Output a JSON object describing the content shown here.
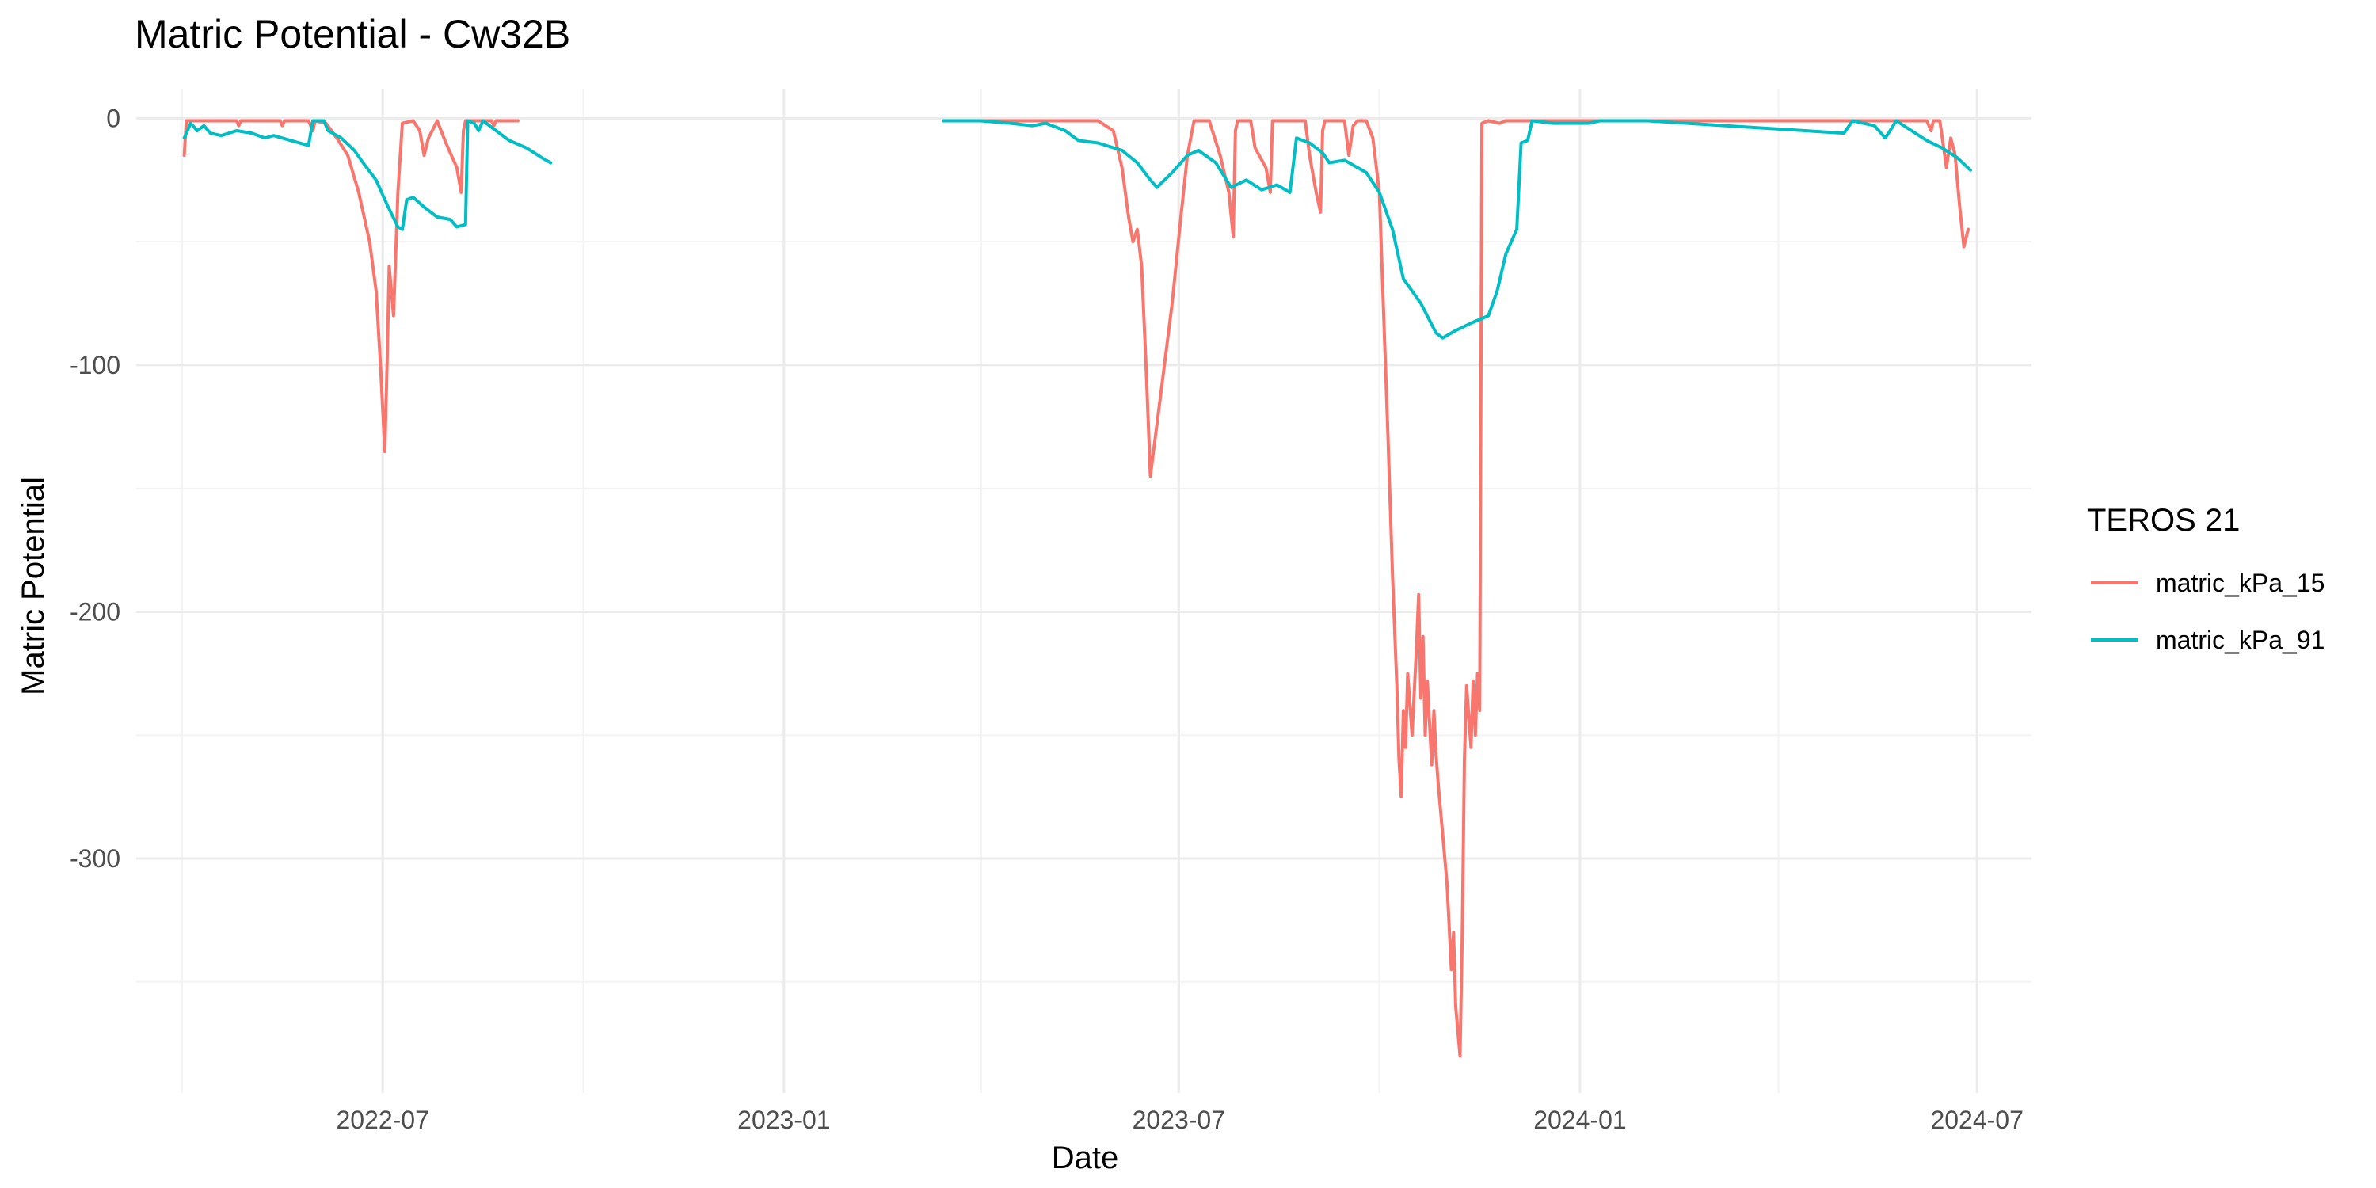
{
  "chart_data": {
    "type": "line",
    "title": "Matric Potential - Cw32B",
    "xlabel": "Date",
    "ylabel": "Matric Potential",
    "xlim": [
      "2022-03-10",
      "2024-07-26"
    ],
    "ylim": [
      -395,
      12
    ],
    "x_ticks": [
      "2022-07-01",
      "2023-01-01",
      "2023-07-01",
      "2024-01-01",
      "2024-07-01"
    ],
    "x_tick_labels": [
      "2022-07",
      "2023-01",
      "2023-07",
      "2024-01",
      "2024-07"
    ],
    "y_ticks": [
      0,
      -100,
      -200,
      -300
    ],
    "y_tick_labels": [
      "0",
      "-100",
      "-200",
      "-300"
    ],
    "grid": true,
    "legend": {
      "title": "TEROS 21",
      "position": "right"
    },
    "series": [
      {
        "name": "matric_kPa_15",
        "color": "#F8766D",
        "segments": [
          [
            [
              "2022-04-01",
              -15
            ],
            [
              "2022-04-02",
              -1
            ],
            [
              "2022-04-25",
              -1
            ],
            [
              "2022-04-26",
              -3
            ],
            [
              "2022-04-27",
              -1
            ],
            [
              "2022-05-15",
              -1
            ],
            [
              "2022-05-16",
              -3
            ],
            [
              "2022-05-17",
              -1
            ],
            [
              "2022-05-28",
              -1
            ],
            [
              "2022-05-30",
              -5
            ],
            [
              "2022-05-31",
              -1
            ],
            [
              "2022-06-05",
              -2
            ],
            [
              "2022-06-10",
              -8
            ],
            [
              "2022-06-15",
              -15
            ],
            [
              "2022-06-20",
              -30
            ],
            [
              "2022-06-25",
              -50
            ],
            [
              "2022-06-28",
              -70
            ],
            [
              "2022-06-30",
              -100
            ],
            [
              "2022-07-02",
              -135
            ],
            [
              "2022-07-03",
              -100
            ],
            [
              "2022-07-04",
              -60
            ],
            [
              "2022-07-06",
              -80
            ],
            [
              "2022-07-08",
              -30
            ],
            [
              "2022-07-10",
              -2
            ],
            [
              "2022-07-15",
              -1
            ],
            [
              "2022-07-18",
              -5
            ],
            [
              "2022-07-20",
              -15
            ],
            [
              "2022-07-22",
              -8
            ],
            [
              "2022-07-26",
              -1
            ],
            [
              "2022-07-30",
              -10
            ],
            [
              "2022-08-04",
              -20
            ],
            [
              "2022-08-06",
              -30
            ],
            [
              "2022-08-07",
              -5
            ],
            [
              "2022-08-08",
              -1
            ],
            [
              "2022-08-20",
              -1
            ],
            [
              "2022-08-21",
              -3
            ],
            [
              "2022-08-22",
              -1
            ],
            [
              "2022-09-01",
              -1
            ]
          ],
          [
            [
              "2023-03-15",
              -1
            ],
            [
              "2023-04-15",
              -1
            ],
            [
              "2023-05-10",
              -1
            ],
            [
              "2023-05-25",
              -1
            ],
            [
              "2023-06-01",
              -5
            ],
            [
              "2023-06-05",
              -20
            ],
            [
              "2023-06-08",
              -40
            ],
            [
              "2023-06-10",
              -50
            ],
            [
              "2023-06-12",
              -45
            ],
            [
              "2023-06-14",
              -60
            ],
            [
              "2023-06-16",
              -100
            ],
            [
              "2023-06-18",
              -145
            ],
            [
              "2023-06-23",
              -110
            ],
            [
              "2023-06-28",
              -75
            ],
            [
              "2023-07-02",
              -40
            ],
            [
              "2023-07-05",
              -15
            ],
            [
              "2023-07-08",
              -1
            ],
            [
              "2023-07-15",
              -1
            ],
            [
              "2023-07-20",
              -15
            ],
            [
              "2023-07-24",
              -30
            ],
            [
              "2023-07-26",
              -48
            ],
            [
              "2023-07-27",
              -5
            ],
            [
              "2023-07-28",
              -1
            ],
            [
              "2023-08-03",
              -1
            ],
            [
              "2023-08-05",
              -12
            ],
            [
              "2023-08-10",
              -20
            ],
            [
              "2023-08-12",
              -30
            ],
            [
              "2023-08-13",
              -1
            ],
            [
              "2023-08-28",
              -1
            ],
            [
              "2023-08-30",
              -15
            ],
            [
              "2023-09-02",
              -30
            ],
            [
              "2023-09-04",
              -38
            ],
            [
              "2023-09-05",
              -5
            ],
            [
              "2023-09-06",
              -1
            ],
            [
              "2023-09-15",
              -1
            ],
            [
              "2023-09-17",
              -15
            ],
            [
              "2023-09-19",
              -3
            ],
            [
              "2023-09-21",
              -1
            ],
            [
              "2023-09-25",
              -1
            ],
            [
              "2023-09-28",
              -8
            ],
            [
              "2023-10-01",
              -30
            ],
            [
              "2023-10-03",
              -80
            ],
            [
              "2023-10-05",
              -130
            ],
            [
              "2023-10-07",
              -185
            ],
            [
              "2023-10-09",
              -230
            ],
            [
              "2023-10-10",
              -260
            ],
            [
              "2023-10-11",
              -275
            ],
            [
              "2023-10-12",
              -240
            ],
            [
              "2023-10-13",
              -255
            ],
            [
              "2023-10-14",
              -225
            ],
            [
              "2023-10-16",
              -250
            ],
            [
              "2023-10-18",
              -215
            ],
            [
              "2023-10-19",
              -193
            ],
            [
              "2023-10-20",
              -235
            ],
            [
              "2023-10-21",
              -210
            ],
            [
              "2023-10-22",
              -250
            ],
            [
              "2023-10-23",
              -228
            ],
            [
              "2023-10-25",
              -262
            ],
            [
              "2023-10-26",
              -240
            ],
            [
              "2023-10-27",
              -258
            ],
            [
              "2023-10-28",
              -270
            ],
            [
              "2023-10-30",
              -290
            ],
            [
              "2023-11-01",
              -310
            ],
            [
              "2023-11-03",
              -345
            ],
            [
              "2023-11-04",
              -330
            ],
            [
              "2023-11-05",
              -360
            ],
            [
              "2023-11-07",
              -380
            ],
            [
              "2023-11-08",
              -330
            ],
            [
              "2023-11-09",
              -260
            ],
            [
              "2023-11-10",
              -230
            ],
            [
              "2023-11-12",
              -255
            ],
            [
              "2023-11-13",
              -228
            ],
            [
              "2023-11-14",
              -250
            ],
            [
              "2023-11-15",
              -225
            ],
            [
              "2023-11-16",
              -240
            ],
            [
              "2023-11-17",
              -2
            ],
            [
              "2023-11-20",
              -1
            ],
            [
              "2023-11-25",
              -2
            ],
            [
              "2023-11-28",
              -1
            ],
            [
              "2024-01-15",
              -1
            ],
            [
              "2024-05-01",
              -1
            ],
            [
              "2024-06-08",
              -1
            ],
            [
              "2024-06-10",
              -5
            ],
            [
              "2024-06-11",
              -1
            ],
            [
              "2024-06-14",
              -1
            ],
            [
              "2024-06-17",
              -20
            ],
            [
              "2024-06-19",
              -8
            ],
            [
              "2024-06-21",
              -15
            ],
            [
              "2024-06-23",
              -35
            ],
            [
              "2024-06-25",
              -52
            ],
            [
              "2024-06-27",
              -45
            ]
          ]
        ]
      },
      {
        "name": "matric_kPa_91",
        "color": "#00BFC4",
        "segments": [
          [
            [
              "2022-04-01",
              -8
            ],
            [
              "2022-04-04",
              -2
            ],
            [
              "2022-04-07",
              -5
            ],
            [
              "2022-04-10",
              -3
            ],
            [
              "2022-04-13",
              -6
            ],
            [
              "2022-04-18",
              -7
            ],
            [
              "2022-04-25",
              -5
            ],
            [
              "2022-05-02",
              -6
            ],
            [
              "2022-05-08",
              -8
            ],
            [
              "2022-05-12",
              -7
            ],
            [
              "2022-05-20",
              -9
            ],
            [
              "2022-05-28",
              -11
            ],
            [
              "2022-05-30",
              -1
            ],
            [
              "2022-06-04",
              -1
            ],
            [
              "2022-06-06",
              -5
            ],
            [
              "2022-06-12",
              -8
            ],
            [
              "2022-06-18",
              -13
            ],
            [
              "2022-06-22",
              -18
            ],
            [
              "2022-06-28",
              -25
            ],
            [
              "2022-07-03",
              -35
            ],
            [
              "2022-07-08",
              -44
            ],
            [
              "2022-07-10",
              -45
            ],
            [
              "2022-07-12",
              -33
            ],
            [
              "2022-07-15",
              -32
            ],
            [
              "2022-07-20",
              -36
            ],
            [
              "2022-07-26",
              -40
            ],
            [
              "2022-08-01",
              -41
            ],
            [
              "2022-08-04",
              -44
            ],
            [
              "2022-08-08",
              -43
            ],
            [
              "2022-08-09",
              -1
            ],
            [
              "2022-08-12",
              -2
            ],
            [
              "2022-08-14",
              -5
            ],
            [
              "2022-08-16",
              -1
            ],
            [
              "2022-08-22",
              -5
            ],
            [
              "2022-08-28",
              -9
            ],
            [
              "2022-09-05",
              -12
            ],
            [
              "2022-09-12",
              -16
            ],
            [
              "2022-09-16",
              -18
            ]
          ],
          [
            [
              "2023-03-15",
              -1
            ],
            [
              "2023-04-01",
              -1
            ],
            [
              "2023-04-15",
              -2
            ],
            [
              "2023-04-25",
              -3
            ],
            [
              "2023-05-01",
              -2
            ],
            [
              "2023-05-10",
              -5
            ],
            [
              "2023-05-16",
              -9
            ],
            [
              "2023-05-25",
              -10
            ],
            [
              "2023-06-05",
              -13
            ],
            [
              "2023-06-12",
              -18
            ],
            [
              "2023-06-18",
              -25
            ],
            [
              "2023-06-21",
              -28
            ],
            [
              "2023-06-28",
              -22
            ],
            [
              "2023-07-05",
              -15
            ],
            [
              "2023-07-10",
              -13
            ],
            [
              "2023-07-18",
              -18
            ],
            [
              "2023-07-25",
              -28
            ],
            [
              "2023-08-01",
              -25
            ],
            [
              "2023-08-08",
              -29
            ],
            [
              "2023-08-15",
              -27
            ],
            [
              "2023-08-21",
              -30
            ],
            [
              "2023-08-24",
              -8
            ],
            [
              "2023-08-30",
              -10
            ],
            [
              "2023-09-05",
              -14
            ],
            [
              "2023-09-08",
              -18
            ],
            [
              "2023-09-15",
              -17
            ],
            [
              "2023-09-25",
              -22
            ],
            [
              "2023-10-01",
              -30
            ],
            [
              "2023-10-07",
              -45
            ],
            [
              "2023-10-12",
              -65
            ],
            [
              "2023-10-20",
              -75
            ],
            [
              "2023-10-27",
              -87
            ],
            [
              "2023-10-30",
              -89
            ],
            [
              "2023-11-05",
              -86
            ],
            [
              "2023-11-12",
              -83
            ],
            [
              "2023-11-20",
              -80
            ],
            [
              "2023-11-24",
              -70
            ],
            [
              "2023-11-28",
              -55
            ],
            [
              "2023-12-03",
              -45
            ],
            [
              "2023-12-05",
              -10
            ],
            [
              "2023-12-08",
              -9
            ],
            [
              "2023-12-10",
              -1
            ],
            [
              "2023-12-20",
              -2
            ],
            [
              "2024-01-05",
              -2
            ],
            [
              "2024-01-10",
              -1
            ],
            [
              "2024-02-01",
              -1
            ],
            [
              "2024-05-01",
              -6
            ],
            [
              "2024-05-05",
              -1
            ],
            [
              "2024-05-15",
              -3
            ],
            [
              "2024-05-20",
              -8
            ],
            [
              "2024-05-25",
              -1
            ],
            [
              "2024-06-01",
              -5
            ],
            [
              "2024-06-08",
              -9
            ],
            [
              "2024-06-15",
              -12
            ],
            [
              "2024-06-22",
              -16
            ],
            [
              "2024-06-28",
              -21
            ]
          ]
        ]
      }
    ]
  }
}
